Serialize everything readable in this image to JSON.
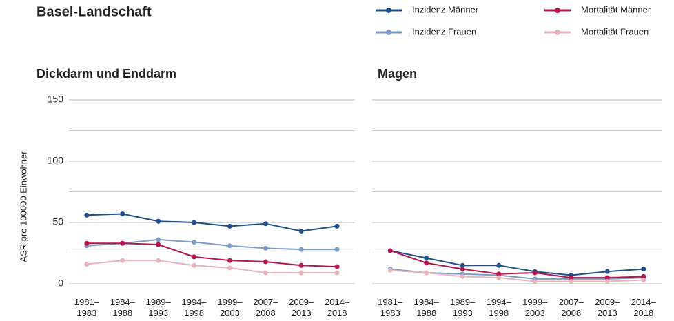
{
  "title": "Basel-Landschaft",
  "legend": [
    {
      "name": "Inzidenz Männer",
      "color": "#1f4e8c"
    },
    {
      "name": "Inzidenz Frauen",
      "color": "#7b9cc8"
    },
    {
      "name": "Mortalität Männer",
      "color": "#b5164b"
    },
    {
      "name": "Mortalität Frauen",
      "color": "#e8b4b8"
    }
  ],
  "chart_data": [
    {
      "type": "line",
      "title": "Dickdarm und Enddarm",
      "ylabel": "ASR pro 100000 Einwohner",
      "categories": [
        "1981–\n1983",
        "1984–\n1988",
        "1989–\n1993",
        "1994–\n1998",
        "1999–\n2003",
        "2007–\n2008",
        "2009–\n2013",
        "2014–\n2018"
      ],
      "ylim": [
        0,
        150
      ],
      "yticks": [
        0,
        50,
        100,
        150
      ],
      "minor_gridlines": [
        25,
        75,
        125
      ],
      "show_ytick_labels": true,
      "grid": true,
      "series": [
        {
          "values": [
            56,
            57,
            51,
            50,
            47,
            49,
            43,
            47
          ]
        },
        {
          "values": [
            31,
            33,
            36,
            34,
            31,
            29,
            28,
            28
          ]
        },
        {
          "values": [
            33,
            33,
            32,
            22,
            19,
            18,
            15,
            14
          ]
        },
        {
          "values": [
            16,
            19,
            19,
            15,
            13,
            9,
            9,
            9
          ]
        }
      ]
    },
    {
      "type": "line",
      "title": "Magen",
      "categories": [
        "1981–\n1983",
        "1984–\n1988",
        "1989–\n1993",
        "1994–\n1998",
        "1999–\n2003",
        "2007–\n2008",
        "2009–\n2013",
        "2014–\n2018"
      ],
      "ylim": [
        0,
        150
      ],
      "yticks": [
        0,
        50,
        100,
        150
      ],
      "minor_gridlines": [
        25,
        75,
        125
      ],
      "show_ytick_labels": false,
      "grid": true,
      "series": [
        {
          "values": [
            27,
            21,
            15,
            15,
            10,
            7,
            10,
            12
          ]
        },
        {
          "values": [
            12,
            9,
            8,
            7,
            4,
            4,
            4,
            5
          ]
        },
        {
          "values": [
            27,
            17,
            12,
            8,
            9,
            5,
            5,
            6
          ]
        },
        {
          "values": [
            11,
            9,
            6,
            5,
            2,
            2,
            2,
            3
          ]
        }
      ]
    }
  ]
}
